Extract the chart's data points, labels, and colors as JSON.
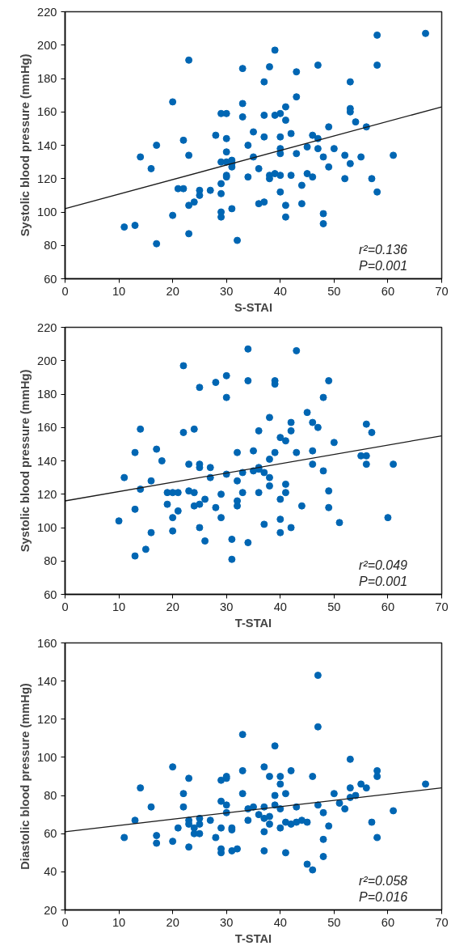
{
  "chart_data": [
    {
      "type": "scatter",
      "xlabel": "S-STAI",
      "ylabel": "Systolic blood pressure (mmHg)",
      "xlim": [
        0,
        70
      ],
      "ylim": [
        60,
        220
      ],
      "xticks": [
        0,
        10,
        20,
        30,
        40,
        50,
        60,
        70
      ],
      "yticks": [
        60,
        80,
        100,
        120,
        140,
        160,
        180,
        200,
        220
      ],
      "marker": "circle",
      "annotations": [
        "r²=0.136",
        "P=0.001"
      ],
      "series": [
        {
          "color": "#0066b3",
          "x": [
            11,
            13,
            14,
            16,
            17,
            17,
            20,
            20,
            21,
            22,
            22,
            23,
            23,
            23,
            23,
            24,
            25,
            25,
            27,
            28,
            29,
            29,
            29,
            29,
            29,
            29,
            30,
            30,
            30,
            30,
            30,
            30,
            31,
            31,
            31,
            31,
            32,
            33,
            33,
            33,
            34,
            34,
            35,
            35,
            36,
            36,
            37,
            37,
            37,
            37,
            38,
            38,
            38,
            39,
            39,
            39,
            40,
            40,
            40,
            40,
            40,
            40,
            41,
            41,
            41,
            41,
            42,
            42,
            43,
            43,
            43,
            44,
            44,
            45,
            45,
            46,
            46,
            47,
            47,
            47,
            48,
            48,
            48,
            49,
            49,
            50,
            52,
            52,
            53,
            53,
            53,
            53,
            54,
            55,
            56,
            57,
            58,
            58,
            58,
            61,
            67
          ],
          "values": [
            91,
            92,
            133,
            126,
            140,
            81,
            98,
            166,
            114,
            114,
            143,
            191,
            134,
            104,
            87,
            106,
            113,
            110,
            113,
            146,
            159,
            130,
            117,
            111,
            100,
            97,
            159,
            144,
            136,
            130,
            122,
            121,
            129,
            127,
            131,
            102,
            83,
            186,
            165,
            157,
            121,
            140,
            148,
            133,
            105,
            126,
            178,
            158,
            145,
            106,
            187,
            122,
            120,
            197,
            158,
            123,
            159,
            145,
            138,
            135,
            122,
            112,
            163,
            155,
            104,
            97,
            147,
            122,
            184,
            169,
            135,
            116,
            105,
            139,
            123,
            146,
            121,
            188,
            144,
            138,
            99,
            93,
            133,
            151,
            127,
            138,
            120,
            134,
            178,
            162,
            160,
            129,
            154,
            133,
            151,
            120,
            206,
            188,
            112,
            134,
            207
          ]
        },
        {
          "type": "line",
          "marker": "none",
          "color": "#1a1a1a",
          "x": [
            0,
            70
          ],
          "values": [
            102,
            163
          ]
        }
      ]
    },
    {
      "type": "scatter",
      "xlabel": "T-STAI",
      "ylabel": "Systolic blood pressure (mmHg)",
      "xlim": [
        0,
        70
      ],
      "ylim": [
        60,
        220
      ],
      "xticks": [
        0,
        10,
        20,
        30,
        40,
        50,
        60,
        70
      ],
      "yticks": [
        60,
        80,
        100,
        120,
        140,
        160,
        180,
        200,
        220
      ],
      "marker": "circle",
      "annotations": [
        "r²=0.049",
        "P=0.001"
      ],
      "series": [
        {
          "color": "#0066b3",
          "x": [
            10,
            11,
            13,
            13,
            13,
            14,
            14,
            15,
            16,
            16,
            17,
            18,
            19,
            19,
            20,
            20,
            20,
            21,
            21,
            22,
            22,
            23,
            23,
            24,
            24,
            24,
            25,
            25,
            25,
            25,
            25,
            26,
            26,
            27,
            27,
            28,
            28,
            29,
            29,
            30,
            30,
            30,
            31,
            31,
            32,
            32,
            32,
            32,
            33,
            33,
            34,
            34,
            34,
            35,
            35,
            36,
            36,
            36,
            36,
            37,
            37,
            38,
            38,
            38,
            38,
            39,
            39,
            39,
            40,
            40,
            40,
            40,
            41,
            41,
            41,
            42,
            42,
            42,
            43,
            43,
            44,
            45,
            46,
            46,
            46,
            47,
            48,
            48,
            49,
            49,
            49,
            50,
            51,
            55,
            56,
            56,
            56,
            57,
            60,
            61
          ],
          "values": [
            104,
            130,
            83,
            111,
            145,
            159,
            123,
            87,
            97,
            128,
            147,
            140,
            121,
            114,
            98,
            106,
            121,
            110,
            121,
            197,
            157,
            122,
            138,
            159,
            121,
            113,
            184,
            138,
            136,
            100,
            114,
            92,
            117,
            136,
            130,
            187,
            112,
            120,
            106,
            191,
            178,
            132,
            81,
            93,
            145,
            128,
            113,
            116,
            133,
            121,
            207,
            188,
            91,
            134,
            146,
            158,
            135,
            121,
            136,
            102,
            133,
            166,
            130,
            125,
            141,
            188,
            186,
            145,
            117,
            105,
            97,
            154,
            152,
            126,
            121,
            158,
            163,
            100,
            206,
            145,
            113,
            169,
            146,
            138,
            163,
            160,
            178,
            134,
            188,
            122,
            112,
            151,
            103,
            143,
            143,
            162,
            138,
            157,
            106,
            138
          ]
        },
        {
          "type": "line",
          "marker": "none",
          "color": "#1a1a1a",
          "x": [
            0,
            70
          ],
          "values": [
            116,
            155
          ]
        }
      ]
    },
    {
      "type": "scatter",
      "xlabel": "T-STAI",
      "ylabel": "Diastolic blood pressure (mmHg)",
      "xlim": [
        0,
        70
      ],
      "ylim": [
        20,
        160
      ],
      "xticks": [
        0,
        10,
        20,
        30,
        40,
        50,
        60,
        70
      ],
      "yticks": [
        20,
        40,
        60,
        80,
        100,
        120,
        140,
        160
      ],
      "marker": "circle",
      "annotations": [
        "r²=0.058",
        "P=0.016"
      ],
      "series": [
        {
          "color": "#0066b3",
          "x": [
            11,
            13,
            14,
            16,
            17,
            17,
            20,
            20,
            21,
            22,
            22,
            23,
            23,
            23,
            23,
            24,
            24,
            25,
            25,
            25,
            27,
            28,
            29,
            29,
            29,
            29,
            29,
            30,
            30,
            30,
            30,
            31,
            31,
            31,
            32,
            33,
            33,
            33,
            34,
            34,
            35,
            36,
            37,
            37,
            37,
            37,
            37,
            38,
            38,
            38,
            39,
            39,
            39,
            40,
            40,
            40,
            40,
            41,
            41,
            41,
            42,
            42,
            43,
            43,
            44,
            45,
            45,
            46,
            46,
            47,
            47,
            47,
            48,
            48,
            48,
            49,
            50,
            51,
            52,
            53,
            53,
            53,
            54,
            55,
            56,
            57,
            58,
            58,
            58,
            61,
            67
          ],
          "values": [
            58,
            67,
            84,
            74,
            59,
            55,
            95,
            56,
            63,
            74,
            81,
            67,
            89,
            65,
            53,
            63,
            60,
            60,
            68,
            65,
            67,
            58,
            77,
            88,
            63,
            52,
            50,
            89,
            71,
            90,
            75,
            63,
            62,
            51,
            52,
            112,
            93,
            81,
            73,
            67,
            74,
            70,
            95,
            74,
            68,
            61,
            51,
            90,
            69,
            65,
            106,
            75,
            80,
            86,
            90,
            73,
            63,
            81,
            66,
            50,
            65,
            93,
            74,
            66,
            67,
            44,
            66,
            90,
            41,
            143,
            116,
            75,
            57,
            48,
            71,
            64,
            81,
            76,
            73,
            99,
            84,
            79,
            80,
            86,
            84,
            66,
            93,
            90,
            58,
            72,
            86
          ]
        },
        {
          "type": "line",
          "marker": "none",
          "color": "#1a1a1a",
          "x": [
            0,
            70
          ],
          "values": [
            61,
            84
          ]
        }
      ]
    }
  ]
}
